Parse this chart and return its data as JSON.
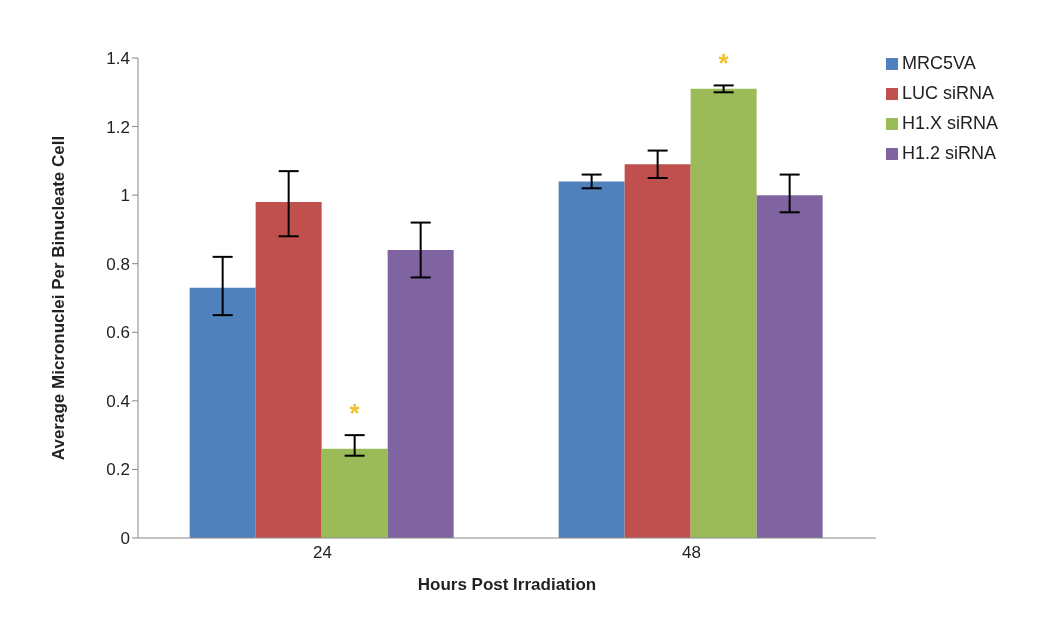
{
  "chart_data": {
    "type": "bar",
    "xlabel": "Hours Post Irradiation",
    "ylabel": "Average Micronuclei Per Binucleate Cell",
    "categories": [
      "24",
      "48"
    ],
    "series": [
      {
        "name": "MRC5VA",
        "color": "#4f81bd",
        "values": [
          0.73,
          1.04
        ],
        "errors": [
          [
            0.65,
            0.82
          ],
          [
            1.02,
            1.06
          ]
        ]
      },
      {
        "name": "LUC siRNA",
        "color": "#c0504d",
        "values": [
          0.98,
          1.09
        ],
        "errors": [
          [
            0.88,
            1.07
          ],
          [
            1.05,
            1.13
          ]
        ]
      },
      {
        "name": "H1.X siRNA",
        "color": "#9bbb59",
        "values": [
          0.26,
          1.31
        ],
        "errors": [
          [
            0.24,
            0.3
          ],
          [
            1.3,
            1.32
          ]
        ]
      },
      {
        "name": "H1.2 siRNA",
        "color": "#8064a2",
        "values": [
          0.84,
          1.0
        ],
        "errors": [
          [
            0.76,
            0.92
          ],
          [
            0.95,
            1.06
          ]
        ]
      }
    ],
    "annotations": [
      {
        "text": "*",
        "x": "24",
        "y": 0.3
      },
      {
        "text": "*",
        "x": "48",
        "y": 1.32
      }
    ],
    "ylim": [
      0,
      1.4
    ],
    "yticks": [
      0,
      0.2,
      0.4,
      0.6,
      0.8,
      1,
      1.2,
      1.4
    ],
    "grid": false,
    "legend": "right"
  }
}
